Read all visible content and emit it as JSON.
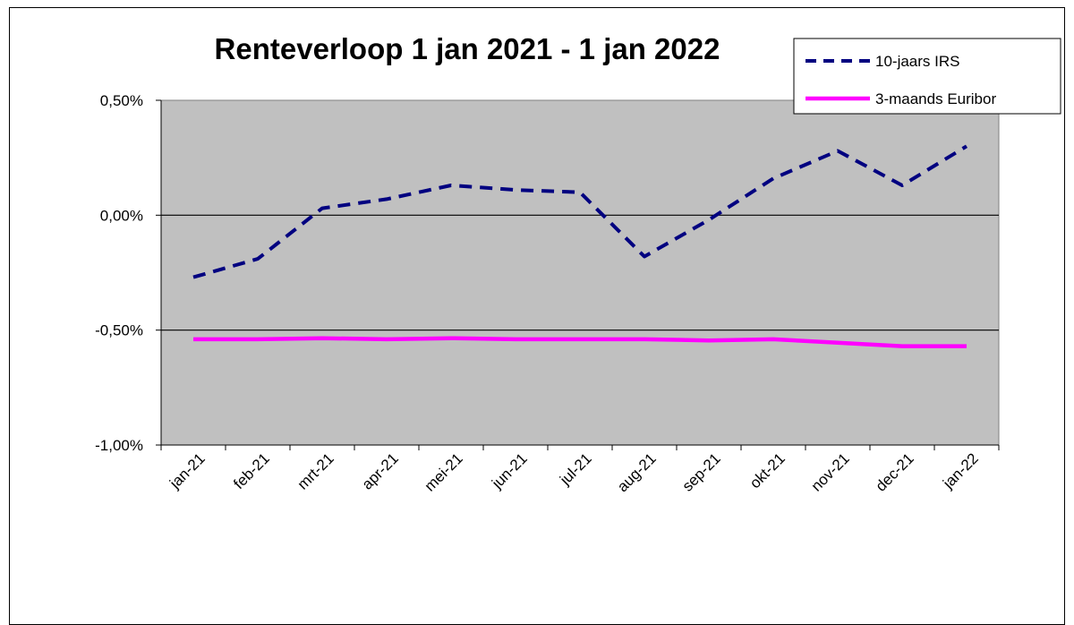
{
  "chart_data": {
    "type": "line",
    "title": "Renteverloop  1 jan 2021 - 1 jan 2022",
    "categories": [
      "jan-21",
      "feb-21",
      "mrt-21",
      "apr-21",
      "mei-21",
      "jun-21",
      "jul-21",
      "aug-21",
      "sep-21",
      "okt-21",
      "nov-21",
      "dec-21",
      "jan-22"
    ],
    "ylim": [
      -1.0,
      0.5
    ],
    "yticks": [
      {
        "value": 0.5,
        "label": "0,50%"
      },
      {
        "value": 0.0,
        "label": "0,00%"
      },
      {
        "value": -0.5,
        "label": "-0,50%"
      },
      {
        "value": -1.0,
        "label": "-1,00%"
      }
    ],
    "grid": true,
    "legend_position": "top-right",
    "plot_background": "#c0c0c0",
    "series": [
      {
        "name": "10-jaars IRS",
        "color": "#000080",
        "style": "dashed",
        "values": [
          -0.27,
          -0.19,
          0.03,
          0.07,
          0.13,
          0.11,
          0.1,
          -0.18,
          -0.02,
          0.16,
          0.28,
          0.13,
          0.3
        ]
      },
      {
        "name": "3-maands Euribor",
        "color": "#ff00ff",
        "style": "solid",
        "values": [
          -0.54,
          -0.54,
          -0.535,
          -0.54,
          -0.535,
          -0.54,
          -0.54,
          -0.54,
          -0.545,
          -0.54,
          -0.555,
          -0.57,
          -0.57
        ]
      }
    ]
  }
}
